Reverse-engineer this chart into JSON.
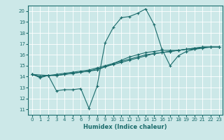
{
  "title": "",
  "xlabel": "Humidex (Indice chaleur)",
  "ylabel": "",
  "xlim": [
    -0.5,
    23.5
  ],
  "ylim": [
    10.5,
    20.5
  ],
  "xticks": [
    0,
    1,
    2,
    3,
    4,
    5,
    6,
    7,
    8,
    9,
    10,
    11,
    12,
    13,
    14,
    15,
    16,
    17,
    18,
    19,
    20,
    21,
    22,
    23
  ],
  "yticks": [
    11,
    12,
    13,
    14,
    15,
    16,
    17,
    18,
    19,
    20
  ],
  "bg_color": "#cce8e8",
  "line_color": "#1a6b6b",
  "grid_color": "#ffffff",
  "lines": [
    {
      "x": [
        0,
        1,
        2,
        3,
        4,
        5,
        6,
        7,
        8,
        9,
        10,
        11,
        12,
        13,
        14,
        15,
        16,
        17,
        18,
        19,
        20,
        21,
        22,
        23
      ],
      "y": [
        14.2,
        13.9,
        14.1,
        12.7,
        12.8,
        12.8,
        12.9,
        11.1,
        13.1,
        17.1,
        18.5,
        19.4,
        19.5,
        19.8,
        20.2,
        18.8,
        16.5,
        15.0,
        15.9,
        16.3,
        16.5,
        16.7,
        16.7,
        16.7
      ]
    },
    {
      "x": [
        0,
        1,
        2,
        3,
        4,
        5,
        6,
        7,
        8,
        9,
        10,
        11,
        12,
        13,
        14,
        15,
        16,
        17,
        18,
        19,
        20,
        21,
        22,
        23
      ],
      "y": [
        14.2,
        14.0,
        14.1,
        14.1,
        14.2,
        14.3,
        14.4,
        14.5,
        14.7,
        14.9,
        15.1,
        15.3,
        15.5,
        15.7,
        15.9,
        16.1,
        16.2,
        16.3,
        16.4,
        16.5,
        16.6,
        16.7,
        16.7,
        16.7
      ]
    },
    {
      "x": [
        0,
        1,
        2,
        3,
        4,
        5,
        6,
        7,
        8,
        9,
        10,
        11,
        12,
        13,
        14,
        15,
        16,
        17,
        18,
        19,
        20,
        21,
        22,
        23
      ],
      "y": [
        14.2,
        14.0,
        14.1,
        14.2,
        14.3,
        14.4,
        14.5,
        14.6,
        14.8,
        15.0,
        15.2,
        15.4,
        15.6,
        15.8,
        16.0,
        16.1,
        16.2,
        16.3,
        16.4,
        16.5,
        16.6,
        16.7,
        16.7,
        16.7
      ]
    },
    {
      "x": [
        0,
        2,
        3,
        4,
        5,
        6,
        7,
        8,
        9,
        10,
        11,
        12,
        13,
        14,
        15,
        16,
        17,
        18,
        19,
        20,
        21,
        22,
        23
      ],
      "y": [
        14.2,
        14.1,
        14.1,
        14.2,
        14.3,
        14.4,
        14.5,
        14.6,
        14.9,
        15.2,
        15.5,
        15.8,
        16.0,
        16.2,
        16.3,
        16.4,
        16.4,
        16.4,
        16.5,
        16.5,
        16.6,
        16.7,
        16.7
      ]
    }
  ]
}
